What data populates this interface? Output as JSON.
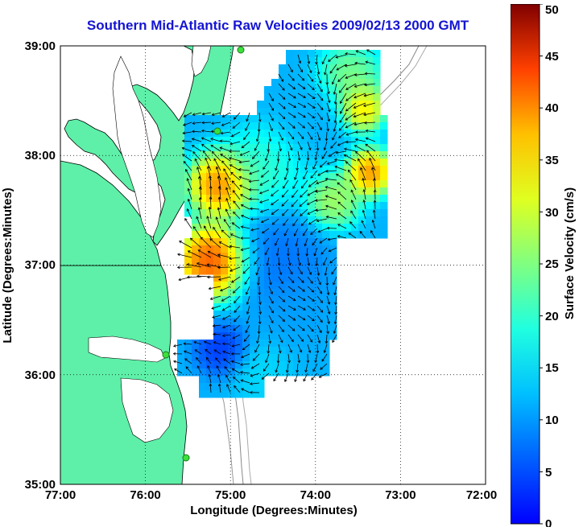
{
  "title": "Southern Mid-Atlantic Raw Velocities 2009/02/13 2000 GMT",
  "map": {
    "x_axis_label": "Longitude (Degrees:Minutes)",
    "y_axis_label": "Latitude (Degrees:Minutes)",
    "x_ticks": [
      "77:00",
      "76:00",
      "75:00",
      "74:00",
      "73:00",
      "72:00"
    ],
    "y_ticks": [
      "39:00",
      "38:00",
      "37:00",
      "36:00",
      "35:00"
    ],
    "lon_range": [
      -77,
      -72
    ],
    "lat_range": [
      35,
      39
    ],
    "grid": "dotted",
    "land_color": "#5ef0a8",
    "water_color": "#ffffff",
    "station_color": "#3be03b"
  },
  "colorbar": {
    "label": "Surface Velocity (cm/s)",
    "ticks": [
      "0",
      "5",
      "10",
      "15",
      "20",
      "25",
      "30",
      "35",
      "40",
      "45",
      "50"
    ],
    "range": [
      0,
      50
    ],
    "colormap": "jet"
  }
}
